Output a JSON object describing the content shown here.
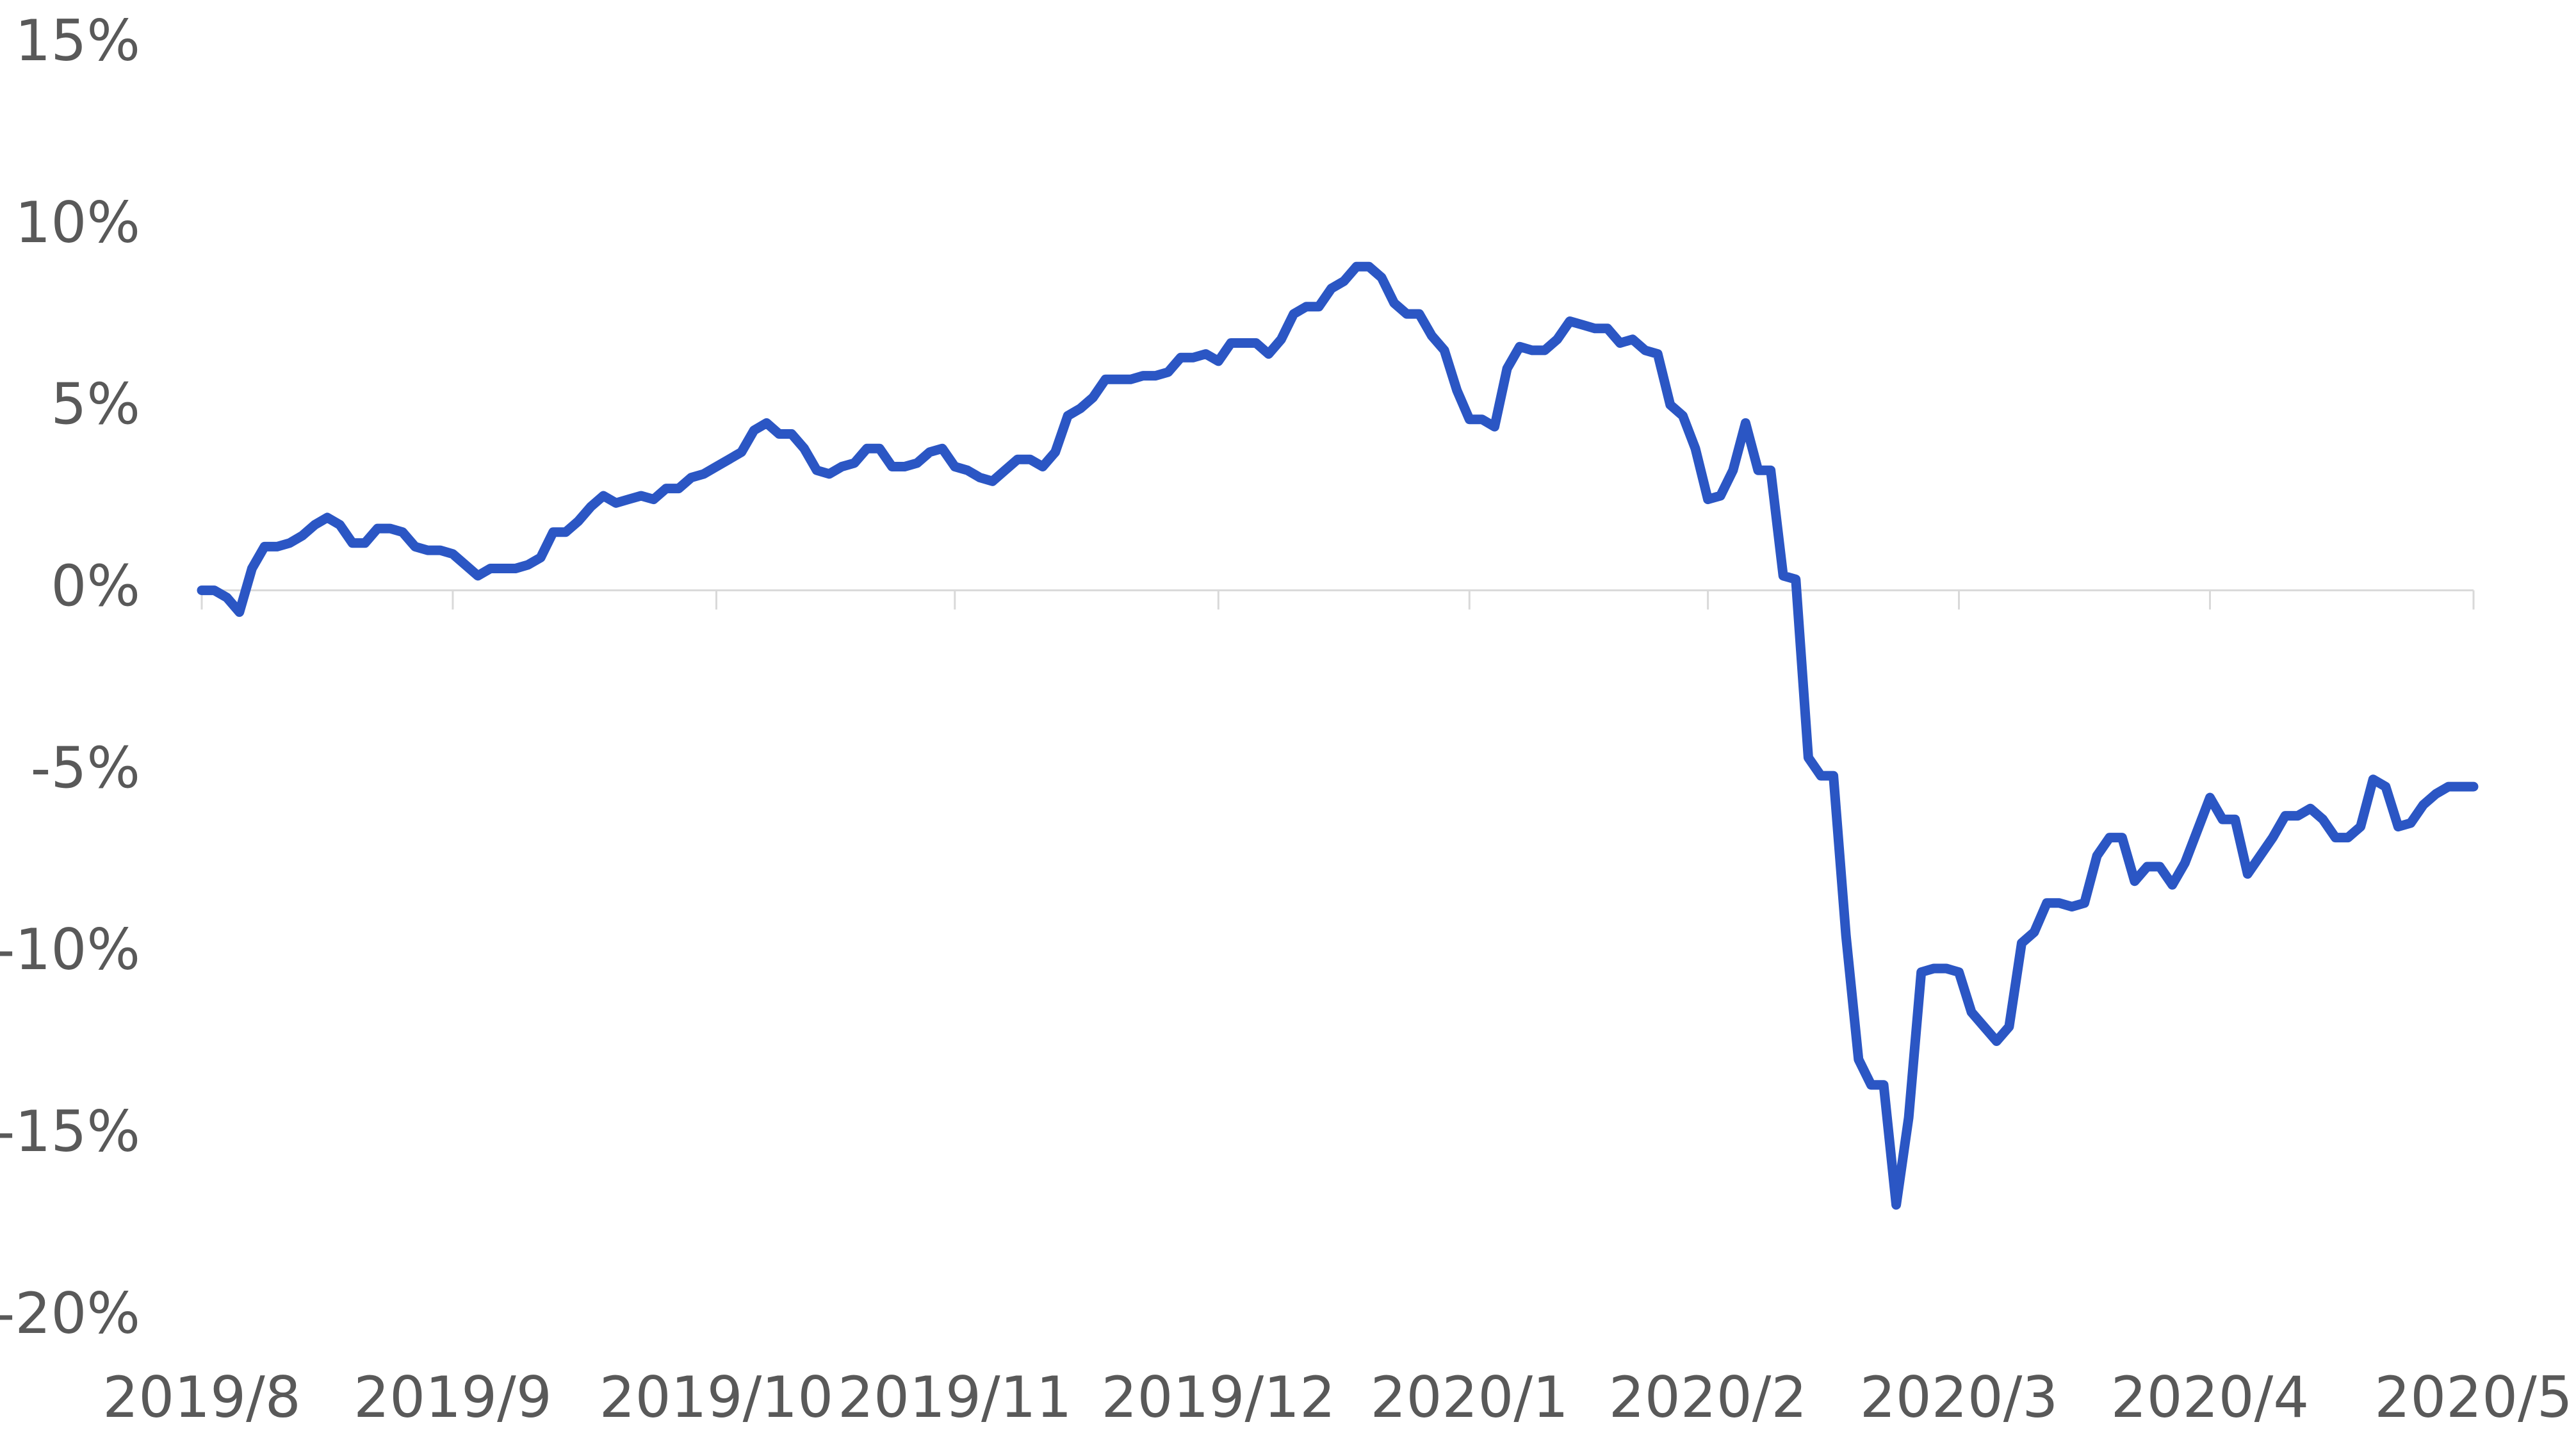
{
  "chart_data": {
    "type": "line",
    "categories": [
      "2019/8",
      null,
      null,
      null,
      null,
      null,
      null,
      null,
      null,
      null,
      null,
      null,
      null,
      null,
      null,
      null,
      null,
      null,
      null,
      null,
      "2019/9",
      null,
      null,
      null,
      null,
      null,
      null,
      null,
      null,
      null,
      null,
      null,
      null,
      null,
      null,
      null,
      null,
      null,
      null,
      null,
      null,
      "2019/10",
      null,
      null,
      null,
      null,
      null,
      null,
      null,
      null,
      null,
      null,
      null,
      null,
      null,
      null,
      null,
      null,
      null,
      null,
      "2019/11",
      null,
      null,
      null,
      null,
      null,
      null,
      null,
      null,
      null,
      null,
      null,
      null,
      null,
      null,
      null,
      null,
      null,
      null,
      null,
      null,
      "2019/12",
      null,
      null,
      null,
      null,
      null,
      null,
      null,
      null,
      null,
      null,
      null,
      null,
      null,
      null,
      null,
      null,
      null,
      null,
      null,
      "2020/1",
      null,
      null,
      null,
      null,
      null,
      null,
      null,
      null,
      null,
      null,
      null,
      null,
      null,
      null,
      null,
      null,
      null,
      null,
      "2020/2",
      null,
      null,
      null,
      null,
      null,
      null,
      null,
      null,
      null,
      null,
      null,
      null,
      null,
      null,
      null,
      null,
      null,
      null,
      null,
      "2020/3",
      null,
      null,
      null,
      null,
      null,
      null,
      null,
      null,
      null,
      null,
      null,
      null,
      null,
      null,
      null,
      null,
      null,
      null,
      null,
      "2020/4",
      null,
      null,
      null,
      null,
      null,
      null,
      null,
      null,
      null,
      null,
      null,
      null,
      null,
      null,
      null,
      null,
      null,
      null,
      null,
      null,
      "2020/5"
    ],
    "values": [
      0,
      0,
      -0.2,
      -0.6,
      0.6,
      1.2,
      1.2,
      1.3,
      1.5,
      1.8,
      2.0,
      1.8,
      1.3,
      1.3,
      1.7,
      1.7,
      1.6,
      1.2,
      1.1,
      1.1,
      1.0,
      0.7,
      0.4,
      0.6,
      0.6,
      0.6,
      0.7,
      0.9,
      1.6,
      1.6,
      1.9,
      2.3,
      2.6,
      2.4,
      2.5,
      2.6,
      2.5,
      2.8,
      2.8,
      3.1,
      3.2,
      3.4,
      3.6,
      3.8,
      4.4,
      4.6,
      4.3,
      4.3,
      3.9,
      3.3,
      3.2,
      3.4,
      3.5,
      3.9,
      3.9,
      3.4,
      3.4,
      3.5,
      3.8,
      3.9,
      3.4,
      3.3,
      3.1,
      3.0,
      3.3,
      3.6,
      3.6,
      3.4,
      3.8,
      4.8,
      5.0,
      5.3,
      5.8,
      5.8,
      5.8,
      5.9,
      5.9,
      6.0,
      6.4,
      6.4,
      6.5,
      6.3,
      6.8,
      6.8,
      6.8,
      6.5,
      6.9,
      7.6,
      7.8,
      7.8,
      8.3,
      8.5,
      8.9,
      8.9,
      8.6,
      7.9,
      7.6,
      7.6,
      7.0,
      6.6,
      5.5,
      4.7,
      4.7,
      4.5,
      6.1,
      6.7,
      6.6,
      6.6,
      6.9,
      7.4,
      7.3,
      7.2,
      7.2,
      6.8,
      6.9,
      6.6,
      6.5,
      5.1,
      4.8,
      3.9,
      2.5,
      2.6,
      3.3,
      4.6,
      3.3,
      3.3,
      0.4,
      0.3,
      -4.6,
      -5.1,
      -5.1,
      -9.5,
      -12.9,
      -13.6,
      -13.6,
      -16.9,
      -14.5,
      -10.5,
      -10.4,
      -10.4,
      -10.5,
      -11.6,
      -12.0,
      -12.4,
      -12.0,
      -9.7,
      -9.4,
      -8.6,
      -8.6,
      -8.7,
      -8.6,
      -7.3,
      -6.8,
      -6.8,
      -8.0,
      -7.6,
      -7.6,
      -8.1,
      -7.5,
      -6.6,
      -5.7,
      -6.3,
      -6.3,
      -7.8,
      -7.3,
      -6.8,
      -6.2,
      -6.2,
      -6.0,
      -6.3,
      -6.8,
      -6.8,
      -6.5,
      -5.2,
      -5.4,
      -6.5,
      -6.4,
      -5.9,
      -5.6,
      -5.4,
      -5.4,
      -5.4
    ],
    "color": "#2b56c4",
    "ylim": [
      -20,
      15
    ],
    "yticks": [
      {
        "value": -20,
        "label": "-20%"
      },
      {
        "value": -15,
        "label": "-15%"
      },
      {
        "value": -10,
        "label": "-10%"
      },
      {
        "value": -5,
        "label": "-5%"
      },
      {
        "value": 0,
        "label": "0%"
      },
      {
        "value": 5,
        "label": "5%"
      },
      {
        "value": 10,
        "label": "10%"
      },
      {
        "value": 15,
        "label": "15%"
      }
    ],
    "grid": false
  }
}
